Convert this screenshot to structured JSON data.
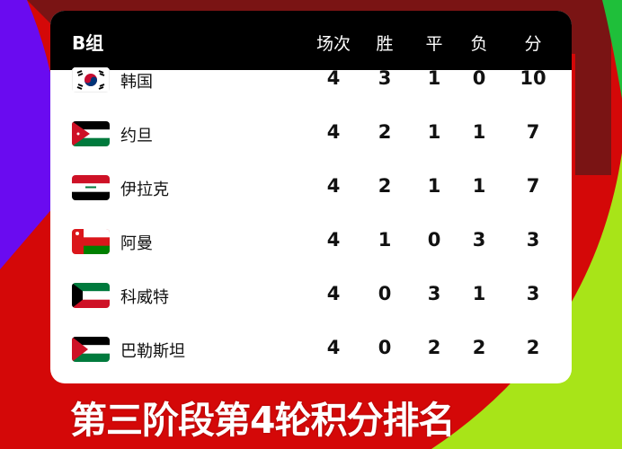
{
  "colors": {
    "purple": "#6a0bf0",
    "dark_red": "#7a1414",
    "red": "#d40808",
    "green": "#1fbf3a",
    "lime": "#a8e418"
  },
  "table": {
    "group": "B组",
    "headers": [
      "场次",
      "胜",
      "平",
      "负",
      "分"
    ],
    "rows": [
      {
        "team": "韩国",
        "flag": "south-korea-flag",
        "stats": [
          "4",
          "3",
          "1",
          "0",
          "10"
        ]
      },
      {
        "team": "约旦",
        "flag": "jordan-flag",
        "stats": [
          "4",
          "2",
          "1",
          "1",
          "7"
        ]
      },
      {
        "team": "伊拉克",
        "flag": "iraq-flag",
        "stats": [
          "4",
          "2",
          "1",
          "1",
          "7"
        ]
      },
      {
        "team": "阿曼",
        "flag": "oman-flag",
        "stats": [
          "4",
          "1",
          "0",
          "3",
          "3"
        ]
      },
      {
        "team": "科威特",
        "flag": "kuwait-flag",
        "stats": [
          "4",
          "0",
          "3",
          "1",
          "3"
        ]
      },
      {
        "team": "巴勒斯坦",
        "flag": "palestine-flag",
        "stats": [
          "4",
          "0",
          "2",
          "2",
          "2"
        ]
      }
    ]
  },
  "caption": "第三阶段第4轮积分排名"
}
